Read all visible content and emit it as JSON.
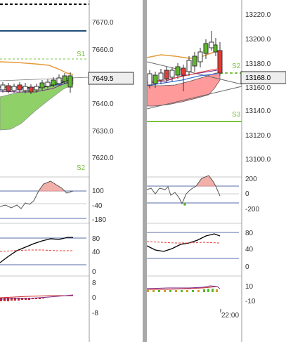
{
  "left_chart": {
    "price_axis": [
      "7670.0",
      "7660.0",
      "7640.0",
      "7630.0",
      "7620.0"
    ],
    "current_price": "7649.5",
    "level_labels": {
      "upper": "S1",
      "lower": "S2"
    },
    "rsi_axis": [
      "100",
      "-40",
      "-180"
    ],
    "stoch_axis": [
      "80",
      "40",
      "0"
    ],
    "macd_axis": [
      "8",
      "0",
      "-8"
    ]
  },
  "right_chart": {
    "price_axis": [
      "13220.0",
      "13200.0",
      "13180.0",
      "13160.0",
      "13140.0",
      "13120.0",
      "13100.0"
    ],
    "current_price": "13168.0",
    "level_labels": {
      "upper": "S2",
      "lower": "S3"
    },
    "rsi_axis": [
      "200",
      "0",
      "-200"
    ],
    "stoch_axis": [
      "80",
      "40",
      "0"
    ],
    "macd_axis": [
      "10",
      "-10"
    ],
    "time_label": "22:00"
  },
  "colors": {
    "bull": "#5cb82a",
    "bear": "#e53935",
    "pivot": "#1f4e79",
    "cloud_bull": "#8fd168",
    "cloud_bear": "#ff9a9a",
    "separator": "#a8a8a8",
    "level": "#7cc242"
  }
}
